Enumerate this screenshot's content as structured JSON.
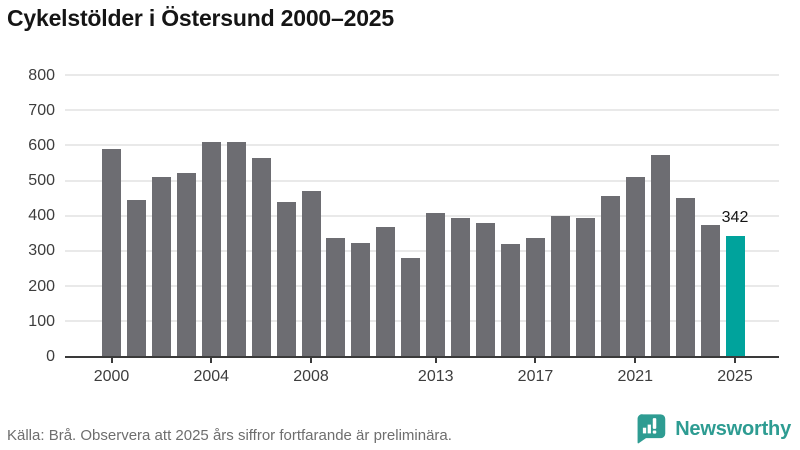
{
  "title": "Cykelstölder i Östersund 2000–2025",
  "source_note": "Källa: Brå. Observera att 2025 års siffror fortfarande är preliminära.",
  "branding": {
    "name": "Newsworthy"
  },
  "colors": {
    "bar_default": "#6d6d72",
    "bar_highlight": "#00a39c",
    "gridline": "#e9e9e9",
    "axis_line": "#3a3a3a",
    "axis_label": "#3d3d3d",
    "title_text": "#151515",
    "footer_text": "#6e6e6e",
    "brand": "#2e9c92"
  },
  "chart_data": {
    "type": "bar",
    "title": "Cykelstölder i Östersund 2000–2025",
    "categories": [
      2000,
      2001,
      2002,
      2003,
      2004,
      2005,
      2006,
      2007,
      2008,
      2009,
      2010,
      2011,
      2012,
      2013,
      2014,
      2015,
      2016,
      2017,
      2018,
      2019,
      2020,
      2021,
      2022,
      2023,
      2024,
      2025
    ],
    "values": [
      590,
      444,
      509,
      522,
      611,
      611,
      563,
      440,
      471,
      338,
      323,
      368,
      279,
      407,
      393,
      378,
      320,
      338,
      400,
      394,
      455,
      511,
      574,
      450,
      375,
      342
    ],
    "xlabel": "",
    "ylabel": "",
    "ylim": [
      0,
      800
    ],
    "ytick_step": 100,
    "xticks_shown": [
      2000,
      2004,
      2008,
      2013,
      2017,
      2021,
      2025
    ],
    "grid": "horizontal-only",
    "legend": "none",
    "highlight": {
      "category": 2025,
      "value": 342,
      "label": "342"
    }
  }
}
